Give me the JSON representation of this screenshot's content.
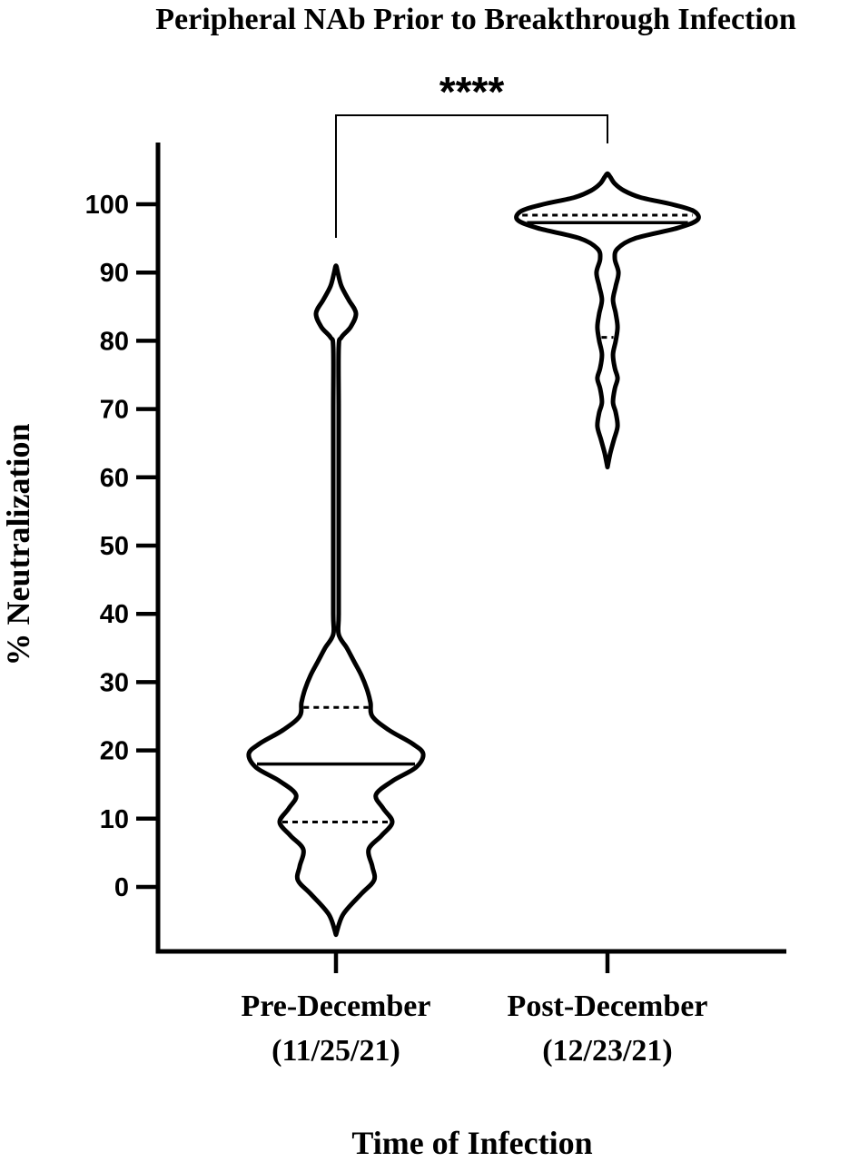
{
  "chart_data": {
    "type": "violin",
    "title": "Peripheral NAb Prior to Breakthrough Infection",
    "xlabel": "Time of Infection",
    "ylabel": "% Neutralization",
    "ylim": [
      -8,
      108
    ],
    "yticks": [
      0,
      10,
      20,
      30,
      40,
      50,
      60,
      70,
      80,
      90,
      100
    ],
    "categories": [
      {
        "line1": "Pre-December",
        "line2": "(11/25/21)"
      },
      {
        "line1": "Post-December",
        "line2": "(12/23/21)"
      }
    ],
    "violins": [
      {
        "min": -7,
        "max": 91,
        "median": 18,
        "q1": 9.5,
        "q3": 26.3,
        "profile": [
          [
            -7,
            0
          ],
          [
            -4,
            8
          ],
          [
            -1,
            28
          ],
          [
            1,
            42
          ],
          [
            3,
            40
          ],
          [
            5.5,
            36
          ],
          [
            7.5,
            50
          ],
          [
            9.5,
            62
          ],
          [
            11.5,
            52
          ],
          [
            13.5,
            44
          ],
          [
            15.5,
            62
          ],
          [
            17.5,
            88
          ],
          [
            19.5,
            96
          ],
          [
            21,
            84
          ],
          [
            23,
            58
          ],
          [
            25,
            40
          ],
          [
            27,
            38
          ],
          [
            29,
            34
          ],
          [
            31,
            28
          ],
          [
            33,
            20
          ],
          [
            35,
            12
          ],
          [
            37,
            3
          ],
          [
            40,
            3
          ],
          [
            50,
            3
          ],
          [
            60,
            3
          ],
          [
            70,
            3
          ],
          [
            79,
            3
          ],
          [
            80.5,
            6
          ],
          [
            82,
            16
          ],
          [
            84,
            22
          ],
          [
            86,
            14
          ],
          [
            88,
            6
          ],
          [
            90,
            2
          ],
          [
            91,
            0
          ]
        ]
      },
      {
        "min": 61.5,
        "max": 104.5,
        "median": 97.3,
        "q1": 80.5,
        "q3": 98.4,
        "profile": [
          [
            61.5,
            0
          ],
          [
            63.5,
            3
          ],
          [
            65.5,
            7
          ],
          [
            67.5,
            11
          ],
          [
            69.5,
            9
          ],
          [
            71,
            6
          ],
          [
            73,
            8
          ],
          [
            74.5,
            11
          ],
          [
            76,
            8
          ],
          [
            78,
            6
          ],
          [
            80,
            9
          ],
          [
            82,
            11
          ],
          [
            84,
            9
          ],
          [
            86,
            6
          ],
          [
            88,
            9
          ],
          [
            90,
            12
          ],
          [
            92,
            8
          ],
          [
            93.5,
            11
          ],
          [
            95,
            30
          ],
          [
            96.5,
            76
          ],
          [
            97.7,
            98
          ],
          [
            99,
            94
          ],
          [
            100,
            70
          ],
          [
            101,
            36
          ],
          [
            102,
            18
          ],
          [
            103,
            8
          ],
          [
            104,
            3
          ],
          [
            104.5,
            0
          ]
        ]
      }
    ],
    "significance": {
      "label": "****",
      "between": [
        0,
        1
      ]
    }
  }
}
